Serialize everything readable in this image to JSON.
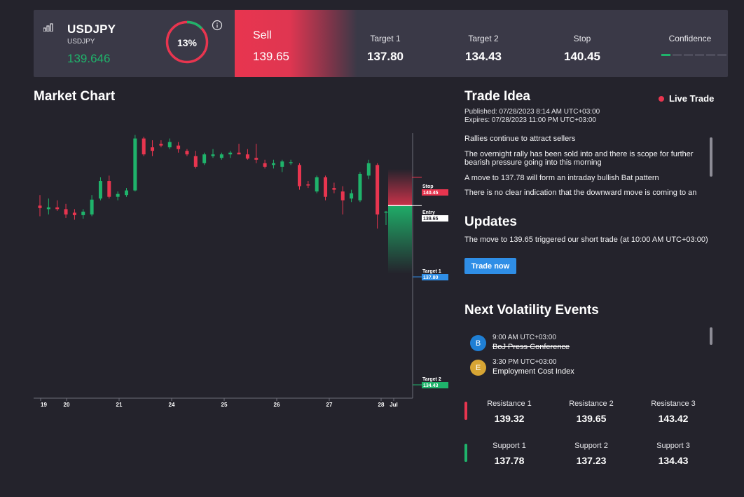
{
  "header": {
    "symbol": "USDJPY",
    "symbol_sub": "USDJPY",
    "price": "139.646",
    "percent": "13%",
    "percent_value": 0.13,
    "direction": "Sell",
    "direction_price": "139.65",
    "target1_label": "Target 1",
    "target1_value": "137.80",
    "target2_label": "Target 2",
    "target2_value": "134.43",
    "stop_label": "Stop",
    "stop_value": "140.45",
    "confidence_label": "Confidence",
    "confidence_level": 1,
    "confidence_max": 6
  },
  "market_chart": {
    "title": "Market Chart",
    "levels": {
      "stop": {
        "label": "Stop",
        "value": "140.45"
      },
      "entry": {
        "label": "Entry",
        "value": "139.65"
      },
      "target1": {
        "label": "Target 1",
        "value": "137.80"
      },
      "target2": {
        "label": "Target 2",
        "value": "134.43"
      }
    },
    "x_labels": [
      "19",
      "20",
      "21",
      "24",
      "25",
      "26",
      "27",
      "28",
      "Jul"
    ]
  },
  "chart_data": {
    "type": "candlestick",
    "title": "Market Chart",
    "x_ticks": [
      "19",
      "20",
      "21",
      "24",
      "25",
      "26",
      "27",
      "28",
      "Jul"
    ],
    "y_range": [
      134.2,
      141.7
    ],
    "candles": [
      {
        "o": 139.65,
        "h": 139.95,
        "l": 139.35,
        "c": 139.58
      },
      {
        "o": 139.55,
        "h": 139.85,
        "l": 139.4,
        "c": 139.6
      },
      {
        "o": 139.6,
        "h": 139.8,
        "l": 139.5,
        "c": 139.55
      },
      {
        "o": 139.55,
        "h": 139.7,
        "l": 139.3,
        "c": 139.4
      },
      {
        "o": 139.45,
        "h": 139.55,
        "l": 139.25,
        "c": 139.38
      },
      {
        "o": 139.38,
        "h": 139.55,
        "l": 139.28,
        "c": 139.48
      },
      {
        "o": 139.4,
        "h": 139.95,
        "l": 139.35,
        "c": 139.82
      },
      {
        "o": 139.85,
        "h": 140.45,
        "l": 139.8,
        "c": 140.35
      },
      {
        "o": 140.35,
        "h": 140.5,
        "l": 139.85,
        "c": 139.9
      },
      {
        "o": 139.9,
        "h": 140.05,
        "l": 139.8,
        "c": 139.98
      },
      {
        "o": 139.95,
        "h": 140.15,
        "l": 139.9,
        "c": 140.08
      },
      {
        "o": 140.08,
        "h": 141.65,
        "l": 140.05,
        "c": 141.55
      },
      {
        "o": 141.55,
        "h": 141.6,
        "l": 141.05,
        "c": 141.1
      },
      {
        "o": 141.3,
        "h": 141.5,
        "l": 141.05,
        "c": 141.2
      },
      {
        "o": 141.4,
        "h": 141.5,
        "l": 141.3,
        "c": 141.35
      },
      {
        "o": 141.3,
        "h": 141.55,
        "l": 141.25,
        "c": 141.45
      },
      {
        "o": 141.35,
        "h": 141.45,
        "l": 141.15,
        "c": 141.25
      },
      {
        "o": 141.2,
        "h": 141.25,
        "l": 141.05,
        "c": 141.1
      },
      {
        "o": 141.05,
        "h": 141.2,
        "l": 140.7,
        "c": 140.75
      },
      {
        "o": 140.85,
        "h": 141.15,
        "l": 140.8,
        "c": 141.1
      },
      {
        "o": 141.05,
        "h": 141.25,
        "l": 141.0,
        "c": 141.1
      },
      {
        "o": 141.0,
        "h": 141.15,
        "l": 140.95,
        "c": 141.1
      },
      {
        "o": 141.1,
        "h": 141.2,
        "l": 141.0,
        "c": 141.15
      },
      {
        "o": 141.15,
        "h": 141.4,
        "l": 141.1,
        "c": 141.1
      },
      {
        "o": 141.1,
        "h": 141.25,
        "l": 140.95,
        "c": 140.98
      },
      {
        "o": 141.0,
        "h": 141.4,
        "l": 140.85,
        "c": 140.95
      },
      {
        "o": 140.85,
        "h": 140.95,
        "l": 140.7,
        "c": 140.75
      },
      {
        "o": 140.8,
        "h": 140.95,
        "l": 140.7,
        "c": 140.85
      },
      {
        "o": 140.75,
        "h": 140.95,
        "l": 140.6,
        "c": 140.9
      },
      {
        "o": 140.85,
        "h": 140.95,
        "l": 140.8,
        "c": 140.88
      },
      {
        "o": 140.8,
        "h": 140.85,
        "l": 140.1,
        "c": 140.2
      },
      {
        "o": 140.25,
        "h": 140.35,
        "l": 140.15,
        "c": 140.22
      },
      {
        "o": 140.05,
        "h": 140.5,
        "l": 140.0,
        "c": 140.45
      },
      {
        "o": 140.45,
        "h": 140.5,
        "l": 139.8,
        "c": 139.9
      },
      {
        "o": 140.15,
        "h": 140.3,
        "l": 140.0,
        "c": 140.1
      },
      {
        "o": 140.05,
        "h": 140.2,
        "l": 139.4,
        "c": 139.8
      },
      {
        "o": 139.85,
        "h": 140.1,
        "l": 139.75,
        "c": 140.0
      },
      {
        "o": 139.8,
        "h": 140.6,
        "l": 139.75,
        "c": 140.55
      },
      {
        "o": 140.5,
        "h": 140.95,
        "l": 140.4,
        "c": 140.85
      },
      {
        "o": 140.8,
        "h": 140.85,
        "l": 139.0,
        "c": 139.4
      },
      {
        "o": 139.45,
        "h": 139.5,
        "l": 139.1,
        "c": 139.48
      }
    ]
  },
  "trade_idea": {
    "title": "Trade Idea",
    "live_label": "Live Trade",
    "published": "Published: 07/28/2023 8:14 AM UTC+03:00",
    "expires": "Expires: 07/28/2023 11:00 PM UTC+03:00",
    "paragraphs": [
      "Rallies continue to attract sellers",
      "The overnight rally has been sold into and there is scope for further bearish pressure going into this morning",
      "A move to 137.78 will form an intraday bullish Bat pattern",
      "There is no clear indication that the downward move is coming to an"
    ]
  },
  "updates": {
    "title": "Updates",
    "text": "The move to 139.65 triggered our short trade (at 10:00 AM UTC+03:00)",
    "button_label": "Trade now"
  },
  "volatility": {
    "title": "Next Volatility Events",
    "events": [
      {
        "badge": "B",
        "time": "9:00 AM UTC+03:00",
        "name": "BoJ Press Conference",
        "color": "#1f7fd4"
      },
      {
        "badge": "E",
        "time": "3:30 PM UTC+03:00",
        "name": "Employment Cost Index",
        "color": "#d7a534"
      }
    ]
  },
  "levels": {
    "resistance": [
      {
        "label": "Resistance 1",
        "value": "139.32"
      },
      {
        "label": "Resistance 2",
        "value": "139.65"
      },
      {
        "label": "Resistance 3",
        "value": "143.42"
      }
    ],
    "support": [
      {
        "label": "Support 1",
        "value": "137.78"
      },
      {
        "label": "Support 2",
        "value": "137.23"
      },
      {
        "label": "Support 3",
        "value": "134.43"
      }
    ]
  },
  "colors": {
    "up": "#1fb36b",
    "down": "#e8354f",
    "accent": "#2f8ee6",
    "background": "#24232c",
    "panel": "#3a3947"
  }
}
